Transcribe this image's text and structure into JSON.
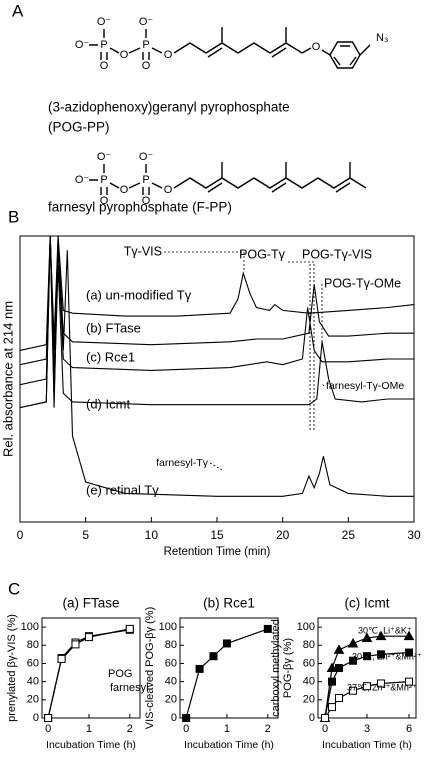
{
  "panels": [
    "A",
    "B",
    "C"
  ],
  "structures": [
    {
      "atoms": [
        "O⁻",
        "O⁻",
        "O⁻",
        "O",
        "O",
        "O",
        "P",
        "P",
        "O",
        "O",
        "N₃"
      ],
      "name_lines": [
        "(3-azidophenoxy)geranyl pyrophosphate",
        "(POG-PP)"
      ]
    },
    {
      "atoms": [
        "O⁻",
        "O⁻",
        "O⁻",
        "O",
        "O",
        "O",
        "P",
        "P",
        "O"
      ],
      "name_lines": [
        "farnesyl pyrophosphate (F-PP)"
      ]
    }
  ],
  "chart_data": [
    {
      "type": "line",
      "x_label": "Retention Time (min)",
      "y_label": "Rel. absorbance at 214 nm",
      "xlim": [
        0,
        30
      ],
      "xticks": [
        0,
        5,
        10,
        15,
        20,
        25,
        30
      ],
      "ylim": [
        0,
        100
      ],
      "annotations": [
        "Tγ-VIS",
        "POG-Tγ",
        "POG-Tγ-VIS",
        "POG-Tγ-OMe",
        "farnesyl-Tγ-OMe",
        "farnesyl-Tγ"
      ],
      "series": [
        {
          "name": "(a) un-modified Tγ",
          "color": "#000000",
          "x": [
            0,
            2,
            2.3,
            2.6,
            2.9,
            3.3,
            4,
            8,
            12,
            16,
            16.6,
            17,
            17.5,
            18,
            19,
            19.4,
            20,
            22,
            25,
            28,
            30
          ],
          "values": [
            60,
            62,
            100,
            64,
            100,
            74,
            73,
            72,
            72,
            73,
            78,
            87,
            80,
            75,
            74,
            76,
            74,
            73,
            74,
            75,
            76
          ]
        },
        {
          "name": "(b) FTase",
          "color": "#000000",
          "x": [
            0,
            2,
            2.3,
            2.6,
            2.9,
            3.3,
            4,
            10,
            16,
            18,
            20,
            22,
            22.4,
            22.8,
            23.5,
            25,
            28,
            30
          ],
          "values": [
            55,
            57,
            100,
            60,
            98,
            66,
            63,
            62,
            63,
            64,
            64,
            66,
            83,
            70,
            65,
            65,
            66,
            66
          ]
        },
        {
          "name": "(c) Rce1",
          "color": "#000000",
          "x": [
            0,
            2,
            2.3,
            2.6,
            2.9,
            3.3,
            4,
            10,
            16,
            18.8,
            20,
            21.5,
            21.9,
            22.4,
            23,
            25,
            28,
            30
          ],
          "values": [
            48,
            50,
            100,
            52,
            96,
            57,
            54,
            53,
            54,
            56,
            55,
            57,
            75,
            60,
            56,
            56,
            57,
            57
          ]
        },
        {
          "name": "(d) Icmt",
          "color": "#000000",
          "x": [
            0,
            2,
            2.3,
            2.6,
            2.9,
            3.3,
            4,
            10,
            16,
            20,
            22,
            22.6,
            23,
            23.5,
            24,
            26,
            28,
            30
          ],
          "values": [
            40,
            42,
            100,
            44,
            90,
            45,
            42,
            41,
            41,
            41,
            41,
            43,
            63,
            50,
            43,
            42,
            43,
            43
          ]
        },
        {
          "name": "(e) retinal Tγ",
          "color": "#000000",
          "x": [
            0,
            2,
            2.3,
            2.6,
            2.9,
            3.3,
            3.6,
            4,
            5,
            8,
            15,
            20,
            21.5,
            22,
            22.4,
            22.8,
            23.1,
            23.6,
            25,
            28,
            30
          ],
          "values": [
            40,
            42,
            100,
            40,
            100,
            60,
            95,
            30,
            14,
            10,
            9,
            9,
            10,
            16,
            12,
            17,
            23,
            13,
            10,
            9,
            9
          ]
        }
      ]
    },
    {
      "type": "scatter",
      "title": "(a) FTase",
      "x_label": "Incubation Time (h)",
      "y_label": [
        "prenylated βγ-VIS (%)"
      ],
      "xlim": [
        -0.15,
        2.25
      ],
      "xticks": [
        0,
        1,
        2
      ],
      "ylim": [
        0,
        110
      ],
      "yticks": [
        0,
        20,
        40,
        60,
        80,
        100
      ],
      "series": [
        {
          "name": "POG",
          "color": "#000000",
          "marker": "open-square",
          "x": [
            0,
            0.33,
            0.67,
            1,
            2
          ],
          "values": [
            0,
            66,
            83,
            90,
            97
          ]
        },
        {
          "name": "farnesyl",
          "color": "#000000",
          "marker": "open-square",
          "x": [
            0,
            0.33,
            0.67,
            1,
            2
          ],
          "values": [
            0,
            65,
            81,
            89,
            98
          ]
        }
      ]
    },
    {
      "type": "scatter",
      "title": "(b) Rce1",
      "x_label": "Incubation Time (h)",
      "y_label": [
        "VIS-cleaved POG-βγ (%)"
      ],
      "xlim": [
        -0.15,
        2.25
      ],
      "xticks": [
        0,
        1,
        2
      ],
      "ylim": [
        0,
        110
      ],
      "yticks": [
        0,
        20,
        40,
        60,
        80,
        100
      ],
      "series": [
        {
          "color": "#000000",
          "marker": "filled-square",
          "x": [
            0,
            0.33,
            0.67,
            1,
            2
          ],
          "values": [
            0,
            54,
            68,
            82,
            98
          ]
        }
      ]
    },
    {
      "type": "scatter",
      "title": "(c) Icmt",
      "x_label": "Incubation Time (h)",
      "y_label": [
        "carboxyl methylated",
        "POG-βγ (%)"
      ],
      "xlim": [
        -0.5,
        6.5
      ],
      "xticks": [
        0,
        3,
        6
      ],
      "ylim": [
        0,
        110
      ],
      "yticks": [
        0,
        20,
        40,
        60,
        80,
        100
      ],
      "series": [
        {
          "name": "30℃, Li⁺&K⁺",
          "color": "#000000",
          "marker": "filled-triangle",
          "x": [
            0,
            0.5,
            1,
            2,
            3,
            4,
            6
          ],
          "values": [
            0,
            55,
            75,
            82,
            88,
            90,
            90
          ]
        },
        {
          "name": "30℃, Zn²⁺&Mn²⁺",
          "color": "#000000",
          "marker": "filled-square",
          "x": [
            0,
            0.5,
            1,
            2,
            3,
            4,
            6
          ],
          "values": [
            0,
            40,
            55,
            63,
            68,
            70,
            72
          ]
        },
        {
          "name": "37℃, Zn²⁺&Mn²⁺",
          "color": "#000000",
          "marker": "open-square",
          "x": [
            0,
            0.5,
            1,
            2,
            3,
            4,
            6
          ],
          "values": [
            0,
            12,
            22,
            30,
            35,
            38,
            40
          ]
        }
      ]
    }
  ]
}
